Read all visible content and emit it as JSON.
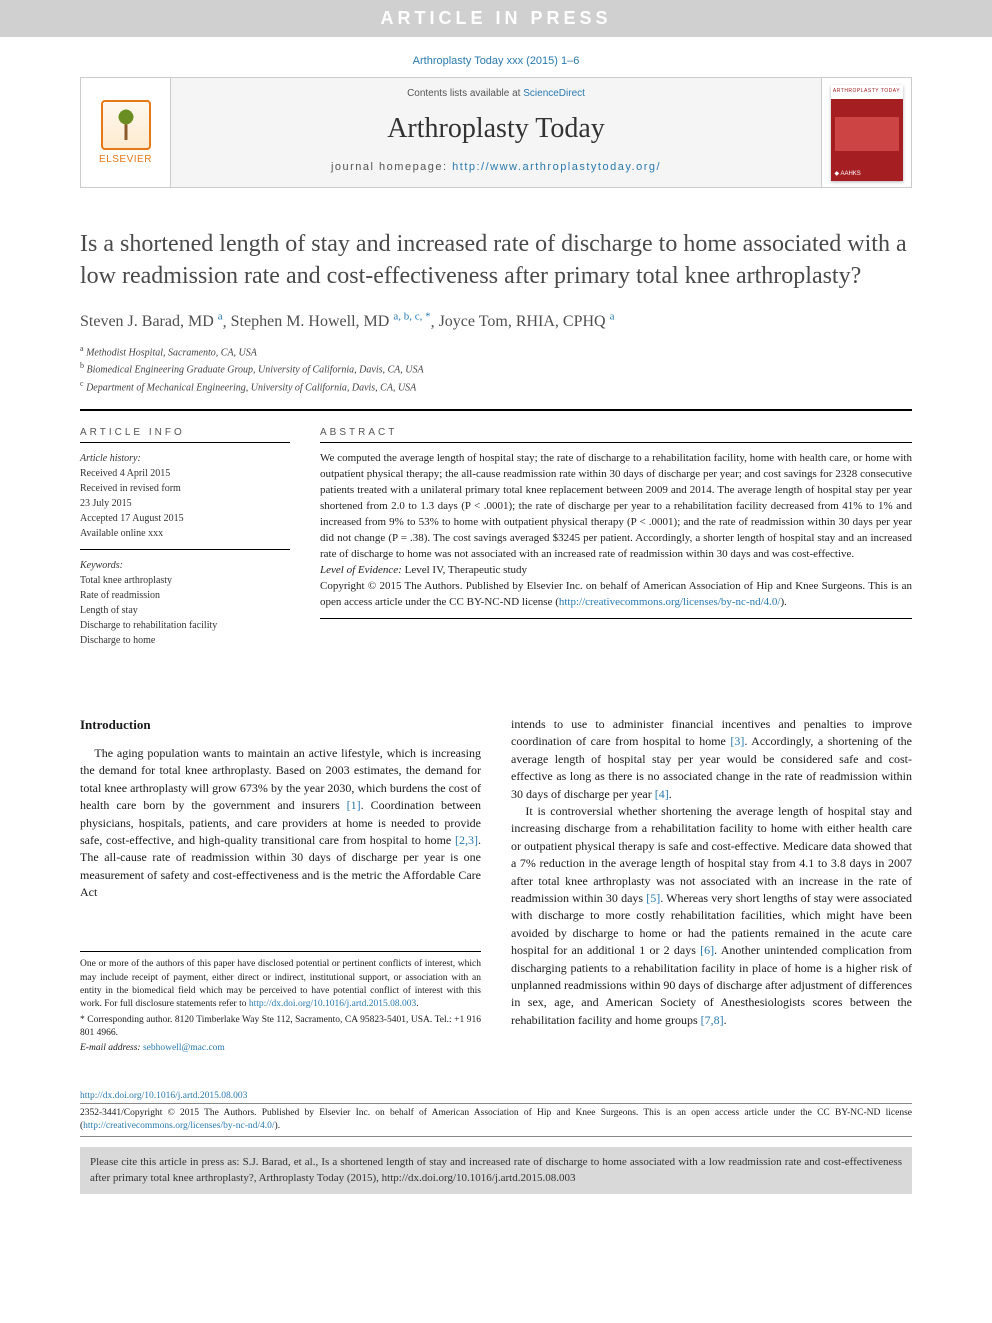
{
  "banner": "ARTICLE IN PRESS",
  "citation_top": "Arthroplasty Today xxx (2015) 1–6",
  "masthead": {
    "contents_prefix": "Contents lists available at ",
    "contents_link": "ScienceDirect",
    "journal": "Arthroplasty Today",
    "homepage_prefix": "journal homepage: ",
    "homepage_url": "http://www.arthroplastytoday.org/",
    "publisher_label": "ELSEVIER",
    "cover_label": "ARTHROPLASTY TODAY",
    "cover_society": "◆ AAHKS"
  },
  "title": "Is a shortened length of stay and increased rate of discharge to home associated with a low readmission rate and cost-effectiveness after primary total knee arthroplasty?",
  "authors": [
    {
      "name": "Steven J. Barad, MD",
      "sup": "a"
    },
    {
      "name": "Stephen M. Howell, MD",
      "sup": "a, b, c, *"
    },
    {
      "name": "Joyce Tom, RHIA, CPHQ",
      "sup": "a"
    }
  ],
  "affiliations": [
    {
      "sup": "a",
      "text": "Methodist Hospital, Sacramento, CA, USA"
    },
    {
      "sup": "b",
      "text": "Biomedical Engineering Graduate Group, University of California, Davis, CA, USA"
    },
    {
      "sup": "c",
      "text": "Department of Mechanical Engineering, University of California, Davis, CA, USA"
    }
  ],
  "info": {
    "head": "ARTICLE INFO",
    "history_label": "Article history:",
    "history": [
      "Received 4 April 2015",
      "Received in revised form",
      "23 July 2015",
      "Accepted 17 August 2015",
      "Available online xxx"
    ],
    "keywords_label": "Keywords:",
    "keywords": [
      "Total knee arthroplasty",
      "Rate of readmission",
      "Length of stay",
      "Discharge to rehabilitation facility",
      "Discharge to home"
    ]
  },
  "abstract": {
    "head": "ABSTRACT",
    "body": "We computed the average length of hospital stay; the rate of discharge to a rehabilitation facility, home with health care, or home with outpatient physical therapy; the all-cause readmission rate within 30 days of discharge per year; and cost savings for 2328 consecutive patients treated with a unilateral primary total knee replacement between 2009 and 2014. The average length of hospital stay per year shortened from 2.0 to 1.3 days (P < .0001); the rate of discharge per year to a rehabilitation facility decreased from 41% to 1% and increased from 9% to 53% to home with outpatient physical therapy (P < .0001); and the rate of readmission within 30 days per year did not change (P = .38). The cost savings averaged $3245 per patient. Accordingly, a shorter length of hospital stay and an increased rate of discharge to home was not associated with an increased rate of readmission within 30 days and was cost-effective.",
    "loe_label": "Level of Evidence:",
    "loe_value": " Level IV, Therapeutic study",
    "copyright": "Copyright © 2015 The Authors. Published by Elsevier Inc. on behalf of American Association of Hip and Knee Surgeons. This is an open access article under the CC BY-NC-ND license (",
    "cc_url": "http://creativecommons.org/licenses/by-nc-nd/4.0/",
    "copyright_close": ")."
  },
  "intro": {
    "head": "Introduction",
    "col1_p1": "The aging population wants to maintain an active lifestyle, which is increasing the demand for total knee arthroplasty. Based on 2003 estimates, the demand for total knee arthroplasty will grow 673% by the year 2030, which burdens the cost of health care born by the government and insurers [1]. Coordination between physicians, hospitals, patients, and care providers at home is needed to provide safe, cost-effective, and high-quality transitional care from hospital to home [2,3]. The all-cause rate of readmission within 30 days of discharge per year is one measurement of safety and cost-effectiveness and is the metric the Affordable Care Act",
    "col2_p1": "intends to use to administer financial incentives and penalties to improve coordination of care from hospital to home [3]. Accordingly, a shortening of the average length of hospital stay per year would be considered safe and cost-effective as long as there is no associated change in the rate of readmission within 30 days of discharge per year [4].",
    "col2_p2": "It is controversial whether shortening the average length of hospital stay and increasing discharge from a rehabilitation facility to home with either health care or outpatient physical therapy is safe and cost-effective. Medicare data showed that a 7% reduction in the average length of hospital stay from 4.1 to 3.8 days in 2007 after total knee arthroplasty was not associated with an increase in the rate of readmission within 30 days [5]. Whereas very short lengths of stay were associated with discharge to more costly rehabilitation facilities, which might have been avoided by discharge to home or had the patients remained in the acute care hospital for an additional 1 or 2 days [6]. Another unintended complication from discharging patients to a rehabilitation facility in place of home is a higher risk of unplanned readmissions within 90 days of discharge after adjustment of differences in sex, age, and American Society of Anesthesiologists scores between the rehabilitation facility and home groups [7,8]."
  },
  "footnotes": {
    "coi": "One or more of the authors of this paper have disclosed potential or pertinent conflicts of interest, which may include receipt of payment, either direct or indirect, institutional support, or association with an entity in the biomedical field which may be perceived to have potential conflict of interest with this work. For full disclosure statements refer to ",
    "coi_url": "http://dx.doi.org/10.1016/j.artd.2015.08.003",
    "coi_close": ".",
    "corr": "* Corresponding author. 8120 Timberlake Way Ste 112, Sacramento, CA 95823-5401, USA. Tel.: +1 916 801 4966.",
    "email_label": "E-mail address: ",
    "email": "sebhowell@mac.com"
  },
  "doi": {
    "url": "http://dx.doi.org/10.1016/j.artd.2015.08.003",
    "issn_copy": "2352-3441/Copyright © 2015 The Authors. Published by Elsevier Inc. on behalf of American Association of Hip and Knee Surgeons. This is an open access article under the CC BY-NC-ND license (",
    "cc_url": "http://creativecommons.org/licenses/by-nc-nd/4.0/",
    "close": ")."
  },
  "cite_box": "Please cite this article in press as: S.J. Barad, et al., Is a shortened length of stay and increased rate of discharge to home associated with a low readmission rate and cost-effectiveness after primary total knee arthroplasty?, Arthroplasty Today (2015), http://dx.doi.org/10.1016/j.artd.2015.08.003"
}
